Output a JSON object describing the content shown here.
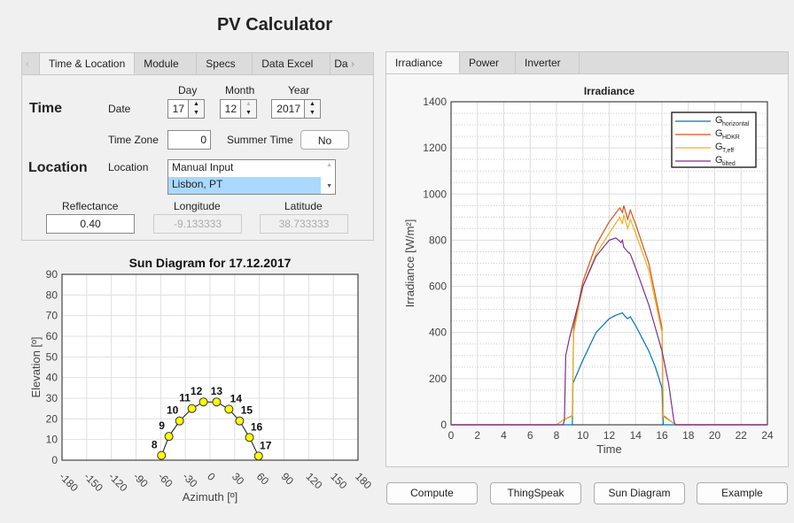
{
  "app": {
    "title": "PV Calculator"
  },
  "left_tabs": [
    "Time & Location",
    "Module",
    "Specs",
    "Data Excel",
    "Da"
  ],
  "time": {
    "heading": "Time",
    "date_label": "Date",
    "day_label": "Day",
    "month_label": "Month",
    "year_label": "Year",
    "day": "17",
    "month": "12",
    "year": "2017",
    "tz_label": "Time Zone",
    "tz": "0",
    "summer_label": "Summer Time",
    "summer": "No"
  },
  "location": {
    "heading": "Location",
    "label": "Location",
    "options": [
      "Manual Input",
      "Lisbon, PT"
    ],
    "selected": "Lisbon, PT"
  },
  "params": {
    "reflectance_label": "Reflectance",
    "reflectance": "0.40",
    "longitude_label": "Longitude",
    "longitude": "-9.133333",
    "latitude_label": "Latitude",
    "latitude": "38.733333"
  },
  "right_tabs": [
    "Irradiance",
    "Power",
    "Inverter"
  ],
  "buttons": {
    "compute": "Compute",
    "thingspeak": "ThingSpeak",
    "sun": "Sun Diagram",
    "example": "Example"
  },
  "chart_data": [
    {
      "type": "scatter",
      "title": "Sun Diagram for 17.12.2017",
      "xlabel": "Azimuth [º]",
      "ylabel": "Elevation [º]",
      "xlim": [
        -180,
        180
      ],
      "ylim": [
        0,
        90
      ],
      "xticks": [
        -180,
        -150,
        -120,
        -90,
        -60,
        -30,
        0,
        30,
        60,
        90,
        120,
        150,
        180
      ],
      "yticks": [
        0,
        10,
        20,
        30,
        40,
        50,
        60,
        70,
        80,
        90
      ],
      "grid": true,
      "points": [
        {
          "label": "8",
          "az": -59,
          "el": 2.3
        },
        {
          "label": "9",
          "az": -50,
          "el": 11.5
        },
        {
          "label": "10",
          "az": -37,
          "el": 19
        },
        {
          "label": "11",
          "az": -22,
          "el": 25
        },
        {
          "label": "12",
          "az": -8,
          "el": 28.2
        },
        {
          "label": "13",
          "az": 8,
          "el": 28.2
        },
        {
          "label": "14",
          "az": 23,
          "el": 24.7
        },
        {
          "label": "15",
          "az": 36,
          "el": 19
        },
        {
          "label": "16",
          "az": 48,
          "el": 11
        },
        {
          "label": "17",
          "az": 59,
          "el": 2
        }
      ],
      "marker_color": "#ffff00"
    },
    {
      "type": "line",
      "title": "Irradiance",
      "xlabel": "Time",
      "ylabel": "Irradiance [W/m²]",
      "xlim": [
        0,
        24
      ],
      "ylim": [
        0,
        1400
      ],
      "xticks": [
        0,
        2,
        4,
        6,
        8,
        10,
        12,
        14,
        16,
        18,
        20,
        22,
        24
      ],
      "yticks": [
        0,
        200,
        400,
        600,
        800,
        1000,
        1200,
        1400
      ],
      "grid": true,
      "legend": "top-right",
      "series": [
        {
          "name": "G",
          "sub": "horizontal",
          "color": "#0072bd",
          "x": [
            0,
            9.2,
            9.25,
            10,
            11,
            12,
            12.5,
            13,
            13.2,
            13.4,
            13.6,
            14,
            15,
            15.5,
            16,
            16.1,
            24
          ],
          "y": [
            0,
            0,
            180,
            280,
            400,
            460,
            475,
            485,
            470,
            460,
            468,
            430,
            320,
            250,
            160,
            0,
            0
          ]
        },
        {
          "name": "G",
          "sub": "HDKR",
          "color": "#d95319",
          "x": [
            0,
            8,
            8.5,
            9.2,
            9.3,
            10,
            11,
            12,
            12.8,
            13,
            13.1,
            13.4,
            13.6,
            14,
            15,
            16,
            16.1,
            16.8,
            17,
            24
          ],
          "y": [
            0,
            0,
            20,
            40,
            420,
            620,
            780,
            880,
            940,
            920,
            950,
            890,
            930,
            870,
            700,
            420,
            40,
            10,
            0,
            0
          ]
        },
        {
          "name": "G",
          "sub": "T,eff",
          "color": "#edb120",
          "x": [
            0,
            8,
            8.5,
            9.2,
            9.3,
            10,
            11,
            12,
            12.8,
            13,
            13.1,
            13.4,
            13.6,
            14,
            15,
            16,
            16.1,
            16.8,
            17,
            24
          ],
          "y": [
            0,
            0,
            20,
            38,
            400,
            600,
            740,
            830,
            900,
            870,
            910,
            850,
            890,
            830,
            670,
            400,
            35,
            10,
            0,
            0
          ]
        },
        {
          "name": "G",
          "sub": "tilted",
          "color": "#7e2f8e",
          "x": [
            0,
            8.5,
            8.6,
            8.7,
            9,
            10,
            11,
            12,
            12.5,
            12.9,
            13,
            13.1,
            13.4,
            13.6,
            14,
            15,
            16,
            16.5,
            16.9,
            17,
            24
          ],
          "y": [
            0,
            0,
            20,
            300,
            380,
            600,
            730,
            800,
            810,
            790,
            800,
            770,
            750,
            740,
            680,
            520,
            320,
            180,
            20,
            0,
            0
          ]
        }
      ]
    }
  ]
}
